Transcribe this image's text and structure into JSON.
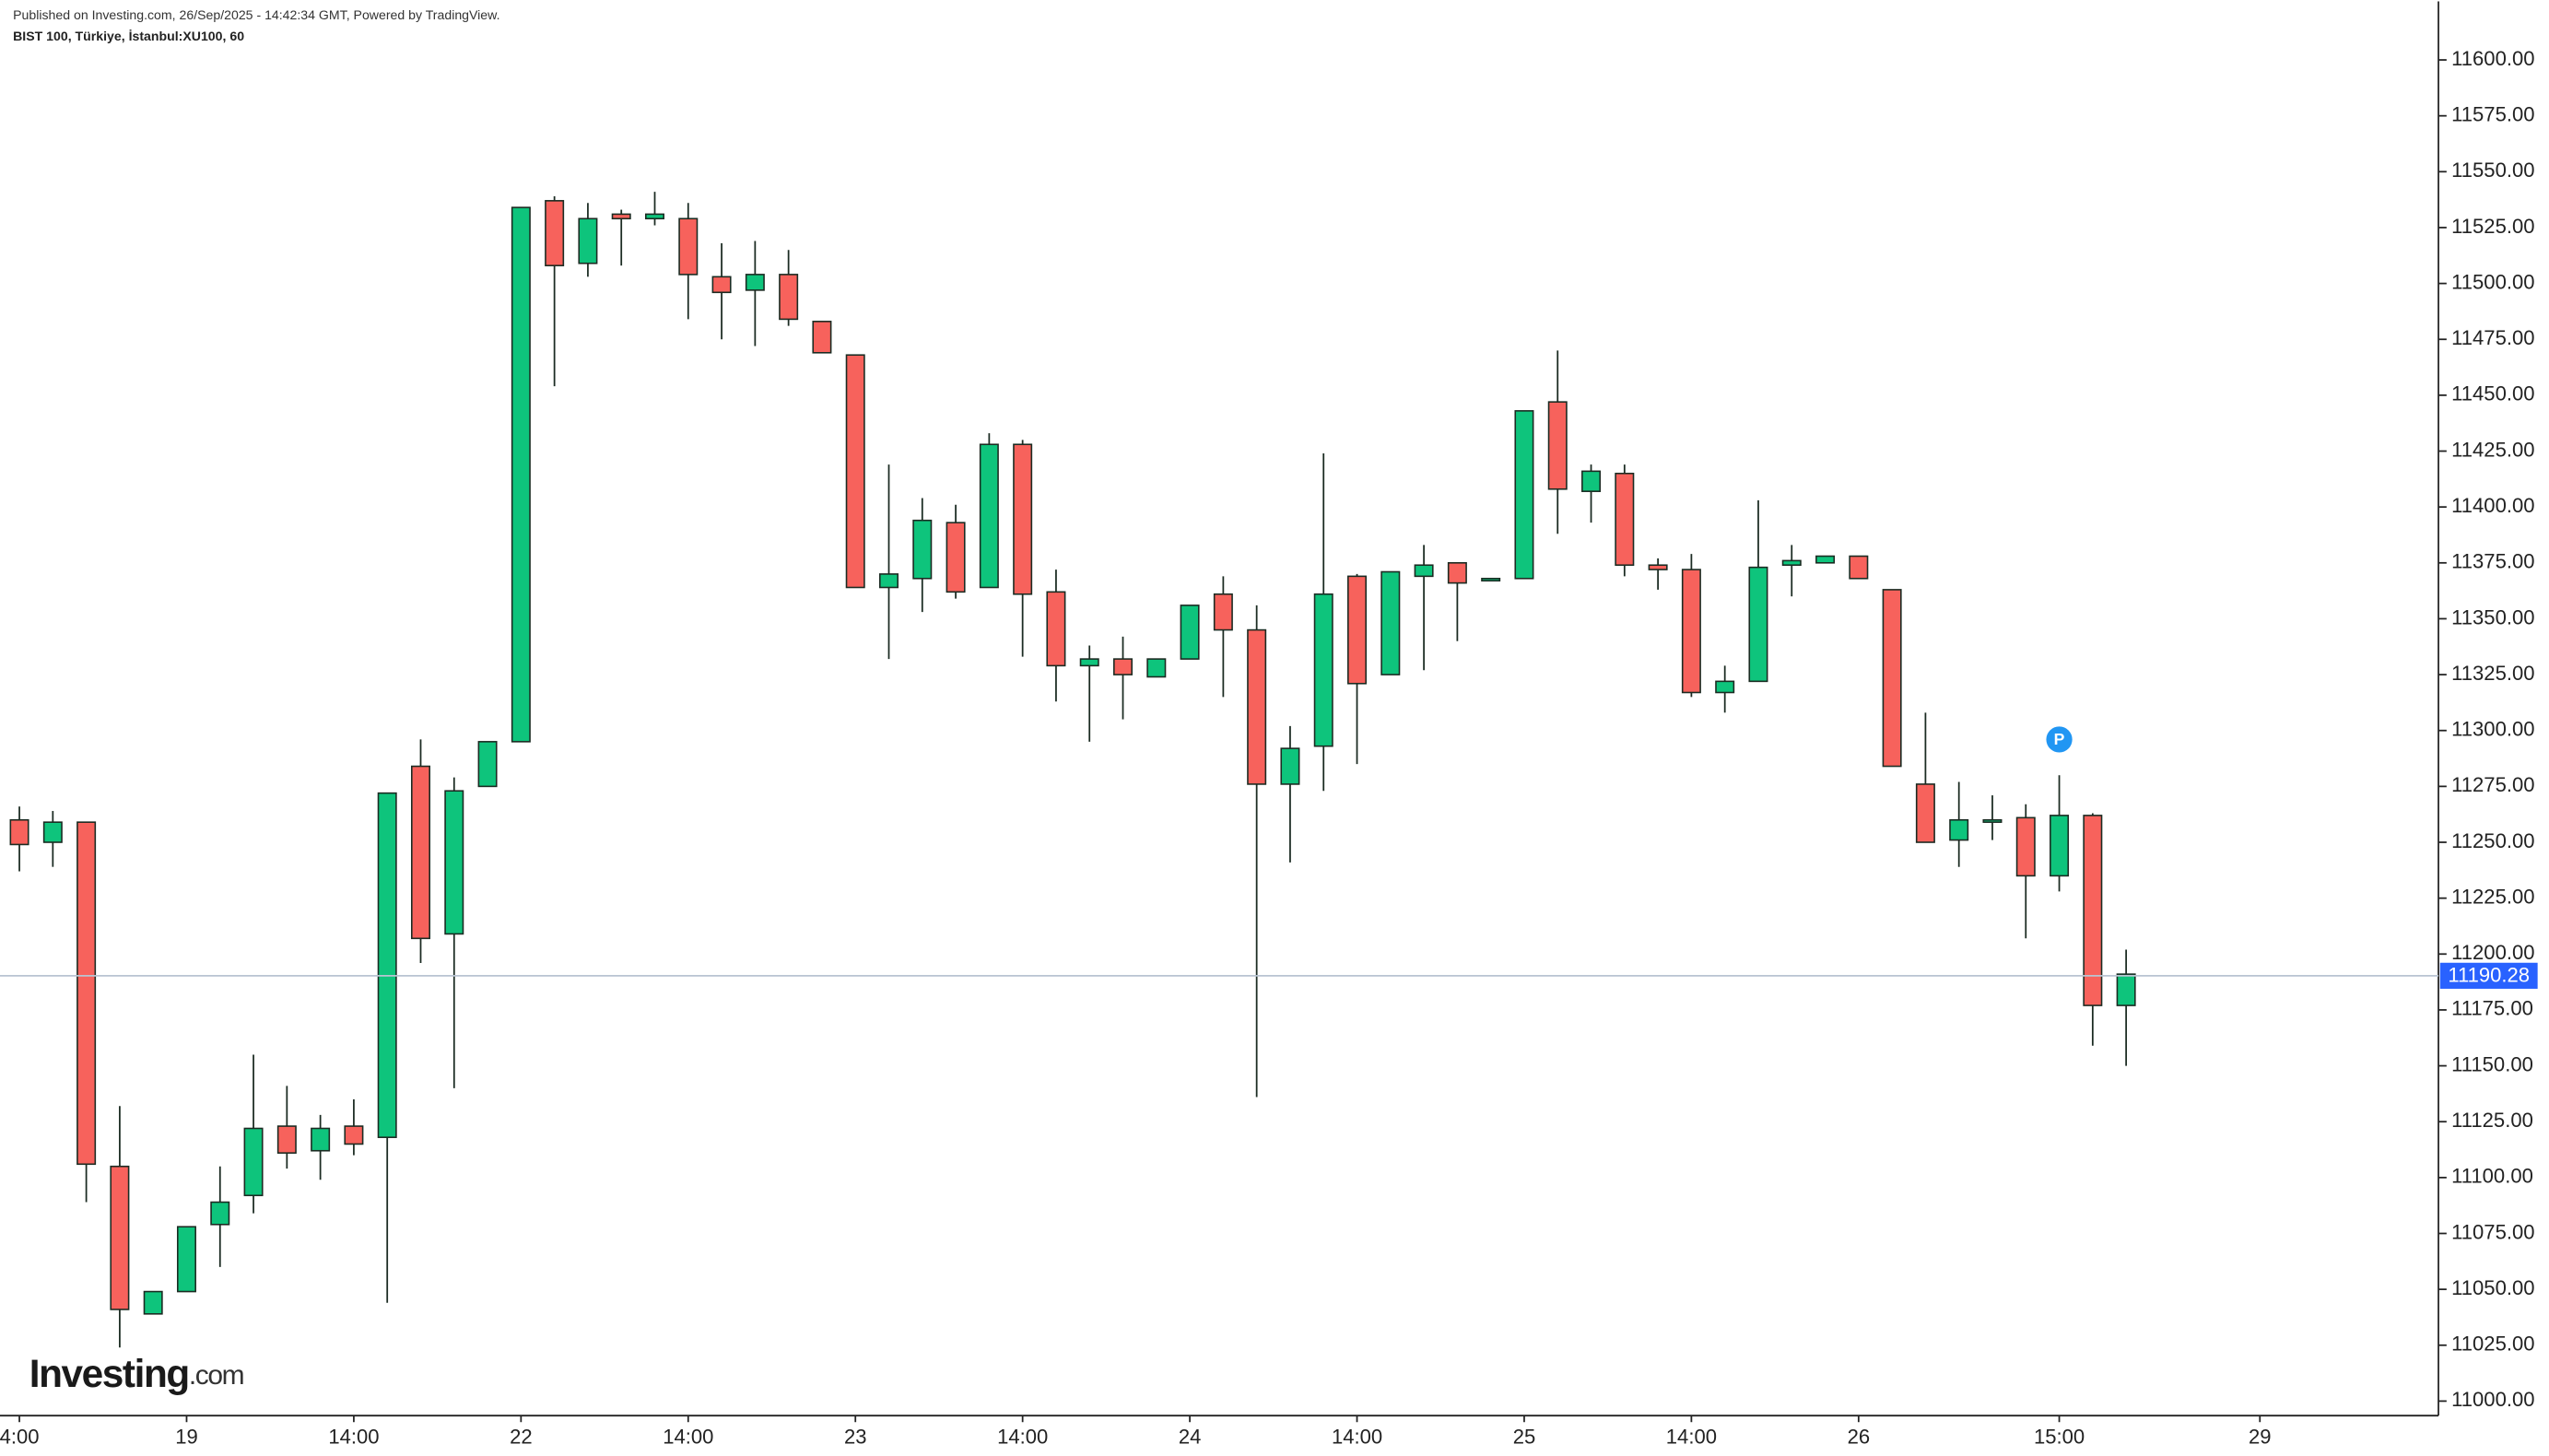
{
  "chart_data": {
    "type": "candlestick",
    "annotation": "Published on Investing.com, 26/Sep/2025 - 14:42:34 GMT, Powered by TradingView.",
    "title": "BIST 100, Türkiye, İstanbul:XU100, 60",
    "logo": {
      "brand": "Investing",
      "suffix": ".com"
    },
    "up_color": "#0ec47c",
    "down_color": "#f7625c",
    "x": [
      0,
      1,
      2,
      3,
      4,
      5,
      6,
      7,
      8,
      9,
      10,
      11,
      12,
      13,
      14,
      15,
      16,
      17,
      18,
      19,
      20,
      21,
      22,
      23,
      24,
      25,
      26,
      27,
      28,
      29,
      30,
      31,
      32,
      33,
      34,
      35,
      36,
      37,
      38,
      39,
      40,
      41,
      42,
      43,
      44,
      45,
      46,
      47,
      48,
      49,
      50,
      51,
      52,
      53,
      54,
      55,
      56,
      57,
      58,
      59,
      60,
      61,
      62,
      63
    ],
    "open": [
      11260,
      11250,
      11259,
      11105,
      11039,
      11049,
      11079,
      11092,
      11123,
      11112,
      11123,
      11118,
      11284,
      11209,
      11275,
      11295,
      11537,
      11509,
      11531,
      11529,
      11529,
      11503,
      11497,
      11504,
      11483,
      11468,
      11364,
      11368,
      11393,
      11364,
      11428,
      11362,
      11329,
      11332,
      11324,
      11332,
      11361,
      11345,
      11276,
      11293,
      11369,
      11325,
      11369,
      11375,
      11367,
      11368,
      11447,
      11407,
      11415,
      11374,
      11372,
      11317,
      11322,
      11374,
      11375,
      11378,
      11363,
      11276,
      11251,
      11259,
      11261,
      11235,
      11262,
      11177
    ],
    "high": [
      11266,
      11264,
      11259,
      11132,
      11049,
      11078,
      11105,
      11155,
      11141,
      11128,
      11135,
      11272,
      11296,
      11279,
      11295,
      11534,
      11539,
      11536,
      11533,
      11541,
      11536,
      11518,
      11519,
      11515,
      11483,
      11468,
      11419,
      11404,
      11401,
      11433,
      11430,
      11372,
      11338,
      11342,
      11332,
      11356,
      11369,
      11356,
      11302,
      11424,
      11370,
      11371,
      11383,
      11375,
      11368,
      11443,
      11470,
      11419,
      11419,
      11377,
      11379,
      11329,
      11403,
      11383,
      11378,
      11378,
      11363,
      11308,
      11277,
      11271,
      11267,
      11280,
      11263,
      11202
    ],
    "low": [
      11237,
      11239,
      11089,
      11024,
      11039,
      11049,
      11060,
      11084,
      11104,
      11099,
      11110,
      11044,
      11196,
      11140,
      11275,
      11295,
      11454,
      11503,
      11508,
      11526,
      11484,
      11475,
      11472,
      11481,
      11469,
      11364,
      11332,
      11353,
      11359,
      11364,
      11333,
      11313,
      11295,
      11305,
      11324,
      11332,
      11315,
      11136,
      11241,
      11273,
      11285,
      11325,
      11327,
      11340,
      11367,
      11368,
      11388,
      11393,
      11369,
      11363,
      11315,
      11308,
      11322,
      11360,
      11375,
      11368,
      11284,
      11250,
      11239,
      11251,
      11207,
      11228,
      11159,
      11150
    ],
    "close": [
      11249,
      11259,
      11106,
      11041,
      11049,
      11078,
      11089,
      11122,
      11111,
      11122,
      11115,
      11272,
      11207,
      11273,
      11295,
      11534,
      11508,
      11529,
      11529,
      11531,
      11504,
      11496,
      11504,
      11484,
      11469,
      11364,
      11370,
      11394,
      11362,
      11428,
      11361,
      11329,
      11332,
      11325,
      11332,
      11356,
      11345,
      11276,
      11292,
      11361,
      11321,
      11371,
      11374,
      11366,
      11368,
      11443,
      11408,
      11416,
      11374,
      11372,
      11317,
      11322,
      11373,
      11376,
      11378,
      11368,
      11284,
      11250,
      11260,
      11260,
      11235,
      11262,
      11177,
      11191
    ],
    "last_price": 11190.28,
    "marker": {
      "x": 61,
      "label": "P"
    },
    "xlim": [
      -0.58,
      72.34
    ],
    "ylim": [
      10993.5,
      11626.2
    ],
    "xticks": [
      {
        "value": 0,
        "label": "4:00"
      },
      {
        "value": 5,
        "label": "19"
      },
      {
        "value": 10,
        "label": "14:00"
      },
      {
        "value": 15,
        "label": "22"
      },
      {
        "value": 20,
        "label": "14:00"
      },
      {
        "value": 25,
        "label": "23"
      },
      {
        "value": 30,
        "label": "14:00"
      },
      {
        "value": 35,
        "label": "24"
      },
      {
        "value": 40,
        "label": "14:00"
      },
      {
        "value": 45,
        "label": "25"
      },
      {
        "value": 50,
        "label": "14:00"
      },
      {
        "value": 55,
        "label": "26"
      },
      {
        "value": 61,
        "label": "15:00"
      },
      {
        "value": 67,
        "label": "29"
      }
    ],
    "yticks": [
      {
        "value": 11000,
        "label": "11000.00"
      },
      {
        "value": 11025,
        "label": "11025.00"
      },
      {
        "value": 11050,
        "label": "11050.00"
      },
      {
        "value": 11075,
        "label": "11075.00"
      },
      {
        "value": 11100,
        "label": "11100.00"
      },
      {
        "value": 11125,
        "label": "11125.00"
      },
      {
        "value": 11150,
        "label": "11150.00"
      },
      {
        "value": 11175,
        "label": "11175.00"
      },
      {
        "value": 11200,
        "label": "11200.00"
      },
      {
        "value": 11225,
        "label": "11225.00"
      },
      {
        "value": 11250,
        "label": "11250.00"
      },
      {
        "value": 11275,
        "label": "11275.00"
      },
      {
        "value": 11300,
        "label": "11300.00"
      },
      {
        "value": 11325,
        "label": "11325.00"
      },
      {
        "value": 11350,
        "label": "11350.00"
      },
      {
        "value": 11375,
        "label": "11375.00"
      },
      {
        "value": 11400,
        "label": "11400.00"
      },
      {
        "value": 11425,
        "label": "11425.00"
      },
      {
        "value": 11450,
        "label": "11450.00"
      },
      {
        "value": 11475,
        "label": "11475.00"
      },
      {
        "value": 11500,
        "label": "11500.00"
      },
      {
        "value": 11525,
        "label": "11525.00"
      },
      {
        "value": 11550,
        "label": "11550.00"
      },
      {
        "value": 11575,
        "label": "11575.00"
      },
      {
        "value": 11600,
        "label": "11600.00"
      }
    ]
  }
}
